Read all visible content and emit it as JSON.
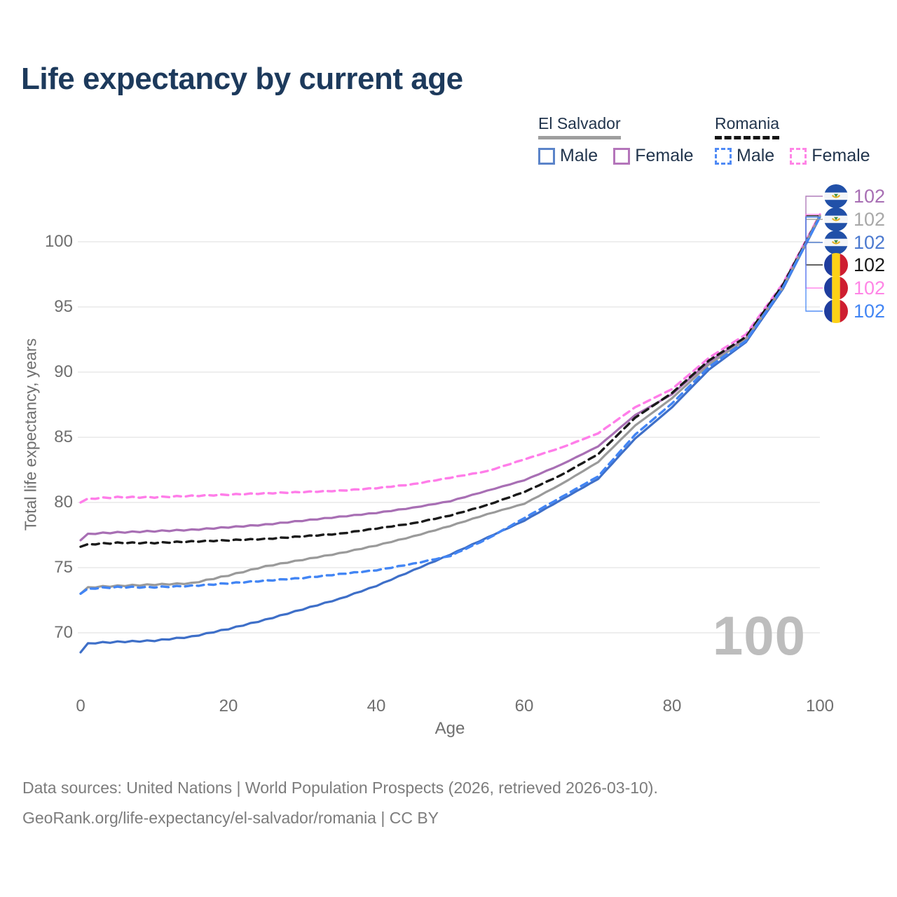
{
  "title": "Life expectancy by current age",
  "legend": {
    "groups": [
      {
        "name": "El Salvador",
        "line_style": "solid",
        "underline_color": "#9e9e9e",
        "items": [
          {
            "label": "Male",
            "color": "#5b84c9",
            "dashed": false
          },
          {
            "label": "Female",
            "color": "#b475ba",
            "dashed": false
          }
        ]
      },
      {
        "name": "Romania",
        "line_style": "dashed",
        "underline_color": "#141414",
        "items": [
          {
            "label": "Male",
            "color": "#4f8af5",
            "dashed": true
          },
          {
            "label": "Female",
            "color": "#ff85e6",
            "dashed": true
          }
        ]
      }
    ]
  },
  "watermark": "100",
  "chart_data": {
    "type": "line",
    "title": "Life expectancy by current age",
    "xlabel": "Age",
    "ylabel": "Total life expectancy, years",
    "x_ticks": [
      0,
      20,
      40,
      60,
      80,
      100
    ],
    "y_ticks": [
      70,
      75,
      80,
      85,
      90,
      95,
      100
    ],
    "xlim": [
      0,
      100
    ],
    "ylim": [
      68,
      103.5
    ],
    "grid": "horizontal",
    "legend_position": "top-right",
    "ages": [
      0,
      1,
      5,
      10,
      15,
      20,
      25,
      30,
      35,
      40,
      45,
      50,
      55,
      60,
      65,
      70,
      75,
      80,
      85,
      90,
      95,
      100
    ],
    "series": [
      {
        "name": "El Salvador Female",
        "country": "El Salvador",
        "sex": "Female",
        "color": "#a86fb4",
        "dashed": false,
        "end_label": "102",
        "flag": "el-salvador",
        "values": [
          77.1,
          77.6,
          77.7,
          77.8,
          77.9,
          78.1,
          78.3,
          78.6,
          78.9,
          79.2,
          79.6,
          80.1,
          80.9,
          81.7,
          82.9,
          84.3,
          86.7,
          88.3,
          90.8,
          92.6,
          96.6,
          102.0
        ]
      },
      {
        "name": "El Salvador Total",
        "country": "El Salvador",
        "sex": "Both",
        "color": "#9a9a9a",
        "dashed": false,
        "end_label": "102",
        "flag": "el-salvador",
        "values": [
          73.0,
          73.5,
          73.6,
          73.7,
          73.8,
          74.4,
          75.1,
          75.6,
          76.1,
          76.7,
          77.4,
          78.2,
          79.1,
          79.9,
          81.4,
          83.1,
          85.9,
          88.0,
          90.6,
          92.5,
          96.5,
          102.0
        ]
      },
      {
        "name": "El Salvador Male",
        "country": "El Salvador",
        "sex": "Male",
        "color": "#3e6fc8",
        "dashed": false,
        "end_label": "102",
        "flag": "el-salvador",
        "values": [
          68.5,
          69.2,
          69.3,
          69.4,
          69.7,
          70.3,
          71.0,
          71.8,
          72.6,
          73.6,
          74.8,
          76.0,
          77.3,
          78.6,
          80.2,
          81.8,
          84.9,
          87.3,
          90.2,
          92.3,
          96.4,
          101.9
        ]
      },
      {
        "name": "Romania Total",
        "country": "Romania",
        "sex": "Both",
        "color": "#1a1a1a",
        "dashed": true,
        "end_label": "102",
        "flag": "romania",
        "values": [
          76.6,
          76.8,
          76.9,
          76.9,
          77.0,
          77.1,
          77.2,
          77.4,
          77.6,
          78.0,
          78.4,
          79.0,
          79.8,
          80.8,
          82.1,
          83.7,
          86.5,
          88.4,
          90.9,
          92.7,
          96.7,
          102.0
        ]
      },
      {
        "name": "Romania Female",
        "country": "Romania",
        "sex": "Female",
        "color": "#ff7de9",
        "dashed": true,
        "end_label": "102",
        "flag": "romania",
        "values": [
          80.0,
          80.3,
          80.4,
          80.4,
          80.5,
          80.6,
          80.7,
          80.8,
          80.9,
          81.1,
          81.4,
          81.9,
          82.4,
          83.3,
          84.2,
          85.3,
          87.3,
          88.7,
          91.1,
          92.9,
          96.8,
          102.1
        ]
      },
      {
        "name": "Romania Male",
        "country": "Romania",
        "sex": "Male",
        "color": "#4285f4",
        "dashed": true,
        "end_label": "102",
        "flag": "romania",
        "values": [
          73.0,
          73.4,
          73.5,
          73.5,
          73.6,
          73.8,
          74.0,
          74.2,
          74.5,
          74.8,
          75.3,
          75.9,
          77.2,
          78.8,
          80.4,
          82.0,
          85.2,
          87.6,
          90.4,
          92.4,
          96.5,
          101.9
        ]
      }
    ]
  },
  "end_labels": [
    {
      "value": "102",
      "color": "#a86fb4",
      "flag": "el-salvador"
    },
    {
      "value": "102",
      "color": "#a8a8a8",
      "flag": "el-salvador"
    },
    {
      "value": "102",
      "color": "#4b79cf",
      "flag": "el-salvador"
    },
    {
      "value": "102",
      "color": "#1a1a1a",
      "flag": "romania"
    },
    {
      "value": "102",
      "color": "#ff85e6",
      "flag": "romania"
    },
    {
      "value": "102",
      "color": "#4285f4",
      "flag": "romania"
    }
  ],
  "footer": {
    "line1": "Data sources: United Nations | World Population Prospects (2026, retrieved 2026-03-10).",
    "line2": "GeoRank.org/life-expectancy/el-salvador/romania | CC BY"
  }
}
